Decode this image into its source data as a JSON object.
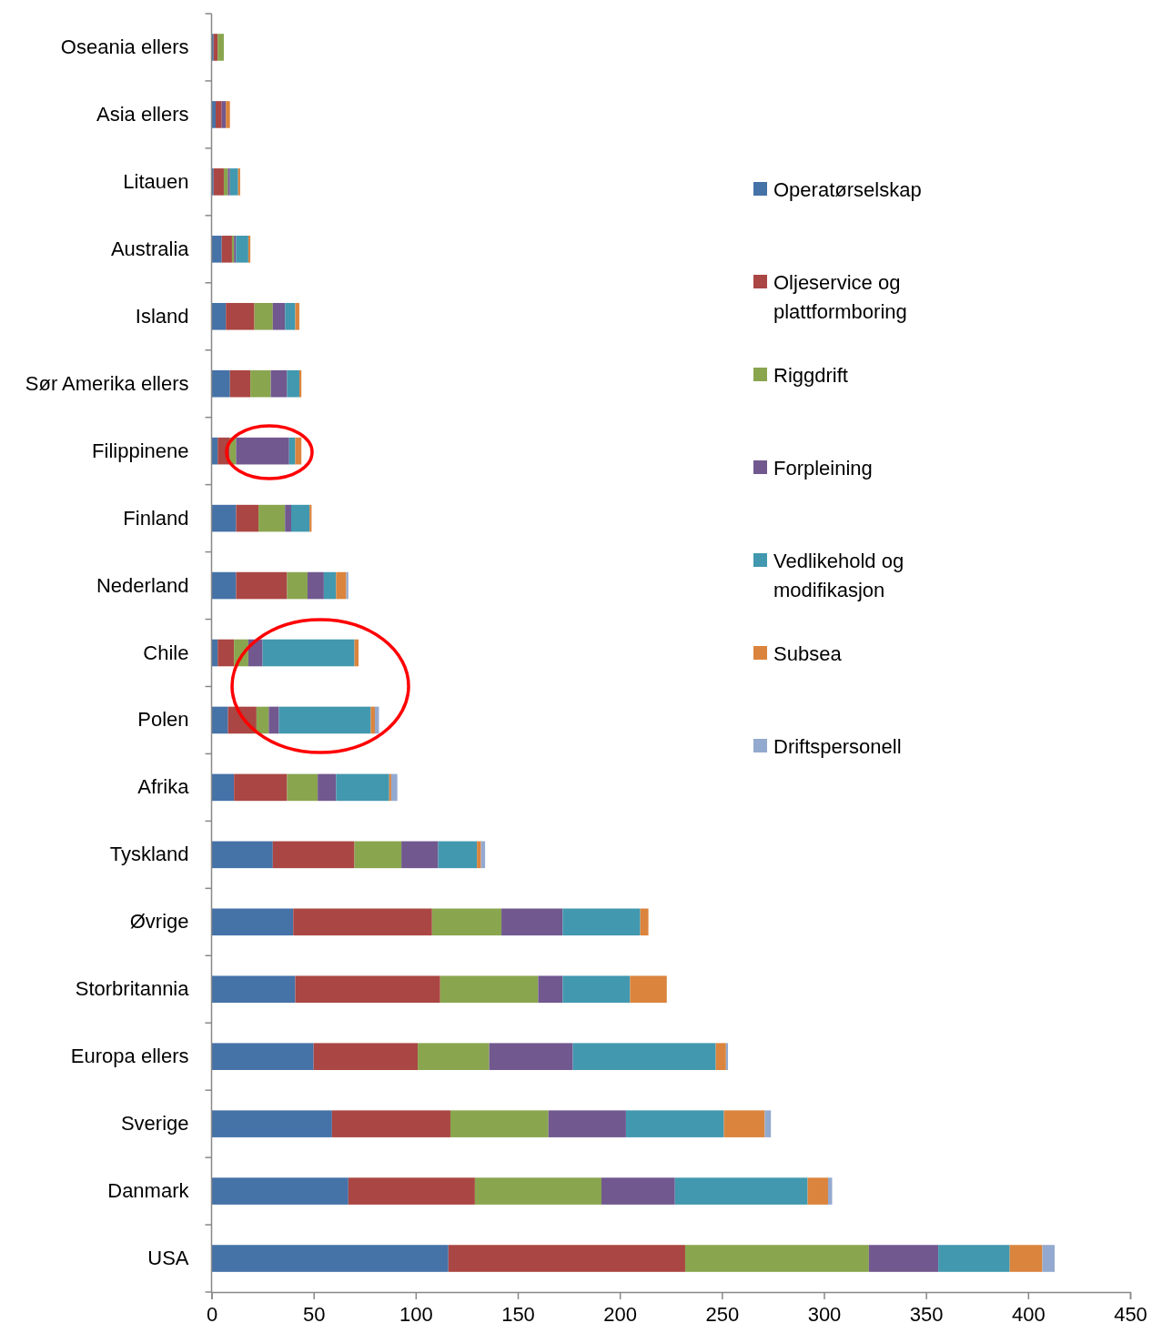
{
  "chart_data": {
    "type": "bar",
    "orientation": "horizontal",
    "stacked": true,
    "categories": [
      "Oseania ellers",
      "Asia ellers",
      "Litauen",
      "Australia",
      "Island",
      "Sør Amerika ellers",
      "Filippinene",
      "Finland",
      "Nederland",
      "Chile",
      "Polen",
      "Afrika",
      "Tyskland",
      "Øvrige",
      "Storbritannia",
      "Europa ellers",
      "Sverige",
      "Danmark",
      "USA"
    ],
    "series": [
      {
        "name": "Operatørselskap",
        "color": "#4572a7",
        "values": [
          1,
          2,
          1,
          5,
          7,
          9,
          3,
          12,
          12,
          3,
          8,
          11,
          30,
          40,
          41,
          50,
          59,
          67,
          116
        ]
      },
      {
        "name": "Oljeservice og plattformboring",
        "color": "#aa4643",
        "values": [
          2,
          3,
          5,
          5,
          14,
          10,
          6,
          11,
          25,
          8,
          14,
          26,
          40,
          68,
          71,
          51,
          58,
          62,
          116
        ]
      },
      {
        "name": "Riggdrift",
        "color": "#89a54e",
        "values": [
          3,
          0,
          2,
          1,
          9,
          10,
          3,
          13,
          10,
          7,
          6,
          15,
          23,
          34,
          48,
          35,
          48,
          62,
          90
        ]
      },
      {
        "name": "Forpleining",
        "color": "#71588f",
        "values": [
          0,
          2,
          1,
          1,
          6,
          8,
          26,
          3,
          8,
          7,
          5,
          9,
          18,
          30,
          12,
          41,
          38,
          36,
          34
        ]
      },
      {
        "name": "Vedlikehold og modifikasjon",
        "color": "#4198af",
        "values": [
          0,
          0,
          4,
          6,
          5,
          6,
          3,
          9,
          6,
          45,
          45,
          26,
          19,
          38,
          33,
          70,
          48,
          65,
          35
        ]
      },
      {
        "name": "Subsea",
        "color": "#db843d",
        "values": [
          0,
          2,
          1,
          1,
          2,
          1,
          3,
          1,
          5,
          2,
          2,
          1,
          2,
          4,
          18,
          5,
          20,
          10,
          16
        ]
      },
      {
        "name": "Driftspersonell",
        "color": "#93a9cf",
        "values": [
          0,
          0,
          0,
          0,
          0,
          0,
          0,
          0,
          1,
          0,
          2,
          3,
          2,
          0,
          0,
          1,
          3,
          2,
          6
        ]
      }
    ],
    "xlim": [
      0,
      450
    ],
    "xticks": [
      0,
      50,
      100,
      150,
      200,
      250,
      300,
      350,
      400,
      450
    ],
    "grid": false,
    "legend": "right"
  }
}
